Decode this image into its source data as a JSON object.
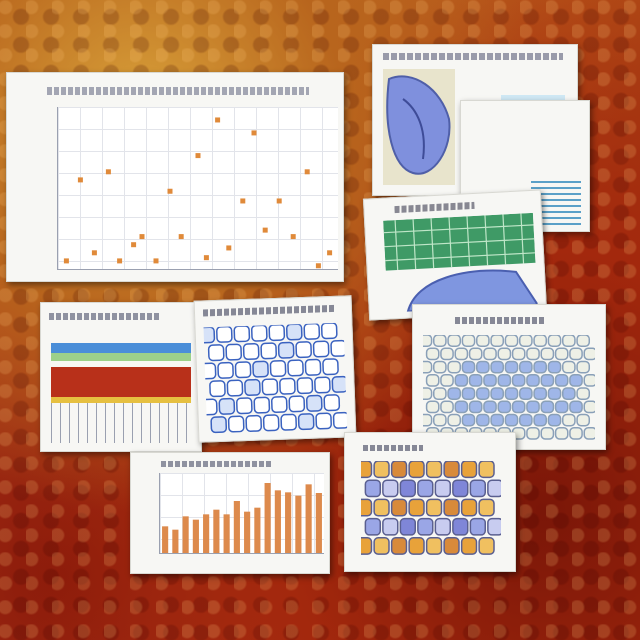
{
  "scene": {
    "colors": {
      "paper": "#f7f7f4",
      "marker_orange": "#e08a3a",
      "bar_orange": "#dd8a4c",
      "map_blue": "#7f96e0",
      "map_green": "#3f9a66",
      "cell_outline": "#8aa0b8"
    },
    "cards": [
      {
        "kind": "scatter-plot"
      },
      {
        "kind": "blue-specimen-figure"
      },
      {
        "kind": "green-blue-map-panel"
      },
      {
        "kind": "layered-cross-section"
      },
      {
        "kind": "blue-cell-network"
      },
      {
        "kind": "cell-cluster-inset"
      },
      {
        "kind": "bar-chart"
      },
      {
        "kind": "colored-cell-tiling"
      }
    ],
    "scatter_marks": [
      [
        0.03,
        0.05
      ],
      [
        0.08,
        0.55
      ],
      [
        0.13,
        0.1
      ],
      [
        0.18,
        0.6
      ],
      [
        0.22,
        0.05
      ],
      [
        0.27,
        0.15
      ],
      [
        0.3,
        0.2
      ],
      [
        0.35,
        0.05
      ],
      [
        0.4,
        0.48
      ],
      [
        0.44,
        0.2
      ],
      [
        0.5,
        0.7
      ],
      [
        0.53,
        0.07
      ],
      [
        0.57,
        0.92
      ],
      [
        0.61,
        0.13
      ],
      [
        0.66,
        0.42
      ],
      [
        0.7,
        0.84
      ],
      [
        0.74,
        0.24
      ],
      [
        0.79,
        0.42
      ],
      [
        0.84,
        0.2
      ],
      [
        0.89,
        0.6
      ],
      [
        0.93,
        0.02
      ],
      [
        0.97,
        0.1
      ]
    ],
    "bar_values": [
      4,
      3.5,
      5.5,
      5,
      5.8,
      6.5,
      5.8,
      7.8,
      6.2,
      6.8,
      10.5,
      9.4,
      9.1,
      8.6,
      10.3,
      9
    ]
  }
}
